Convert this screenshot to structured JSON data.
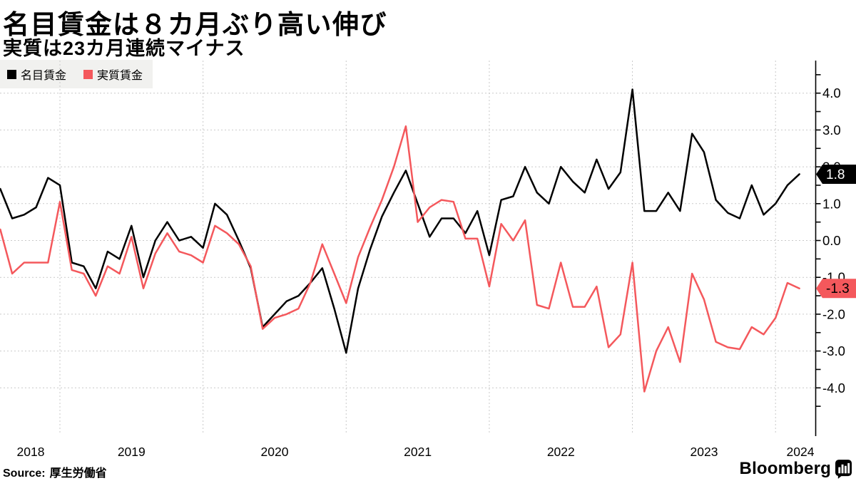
{
  "header": {
    "title": "名目賃金は８カ月ぶり高い伸び",
    "subtitle": "実質は23カ月連続マイナス"
  },
  "legend": {
    "items": [
      {
        "label": "名目賃金",
        "color": "#000000"
      },
      {
        "label": "実質賃金",
        "color": "#f4585c"
      }
    ]
  },
  "chart_data": {
    "type": "line",
    "x_start": "2018-07",
    "x_end": "2024-02",
    "x_interval": "monthly",
    "x_year_labels": [
      "2018",
      "2019",
      "2020",
      "2021",
      "2022",
      "2023",
      "2024"
    ],
    "y_axis": {
      "side": "right",
      "tick_labels": [
        "4.0",
        "3.0",
        "2.0",
        "1.0",
        "0.0",
        "-1.0",
        "-2.0",
        "-3.0",
        "-4.0"
      ],
      "ticks": [
        4,
        3,
        2,
        1,
        0,
        -1,
        -2,
        -3,
        -4
      ],
      "minor_step": 0.5,
      "range": [
        -4.6,
        4.9
      ],
      "unit": "percent YoY"
    },
    "grid": true,
    "series": [
      {
        "name": "名目賃金",
        "color": "#000000",
        "end_label": "1.8",
        "end_label_text_color": "#ffffff",
        "values": [
          1.4,
          0.6,
          0.7,
          0.9,
          1.7,
          1.5,
          -0.6,
          -0.7,
          -1.3,
          -0.3,
          -0.5,
          0.4,
          -1.0,
          0.0,
          0.5,
          0.0,
          0.1,
          -0.2,
          1.0,
          0.7,
          0.0,
          -0.75,
          -2.35,
          -2.0,
          -1.65,
          -1.5,
          -1.15,
          -0.75,
          -1.85,
          -3.05,
          -1.3,
          -0.25,
          0.65,
          1.3,
          1.9,
          1.0,
          0.1,
          0.6,
          0.6,
          0.2,
          0.8,
          -0.4,
          1.1,
          1.2,
          2.0,
          1.3,
          1.0,
          2.0,
          1.6,
          1.3,
          2.2,
          1.4,
          1.85,
          4.1,
          0.8,
          0.8,
          1.3,
          0.8,
          2.9,
          2.4,
          1.1,
          0.75,
          0.6,
          1.5,
          0.7,
          1.0,
          1.5,
          1.8
        ]
      },
      {
        "name": "実質賃金",
        "color": "#f4585c",
        "end_label": "-1.3",
        "end_label_text_color": "#000000",
        "values": [
          0.3,
          -0.9,
          -0.6,
          -0.6,
          -0.6,
          1.05,
          -0.8,
          -0.9,
          -1.5,
          -0.7,
          -0.9,
          0.1,
          -1.3,
          -0.35,
          0.2,
          -0.3,
          -0.4,
          -0.6,
          0.4,
          0.2,
          -0.1,
          -0.7,
          -2.4,
          -2.1,
          -2.0,
          -1.85,
          -1.15,
          -0.1,
          -0.9,
          -1.7,
          -0.45,
          0.35,
          1.1,
          2.0,
          3.1,
          0.5,
          0.9,
          1.1,
          1.05,
          0.05,
          0.05,
          -1.25,
          0.45,
          0.0,
          0.55,
          -1.75,
          -1.85,
          -0.6,
          -1.8,
          -1.8,
          -1.25,
          -2.9,
          -2.55,
          -0.6,
          -4.1,
          -3.0,
          -2.35,
          -3.3,
          -0.9,
          -1.6,
          -2.75,
          -2.9,
          -2.95,
          -2.35,
          -2.55,
          -2.1,
          -1.15,
          -1.3
        ]
      }
    ]
  },
  "footer": {
    "source_prefix": "Source:",
    "source": "厚生労働省",
    "brand": "Bloomberg"
  }
}
